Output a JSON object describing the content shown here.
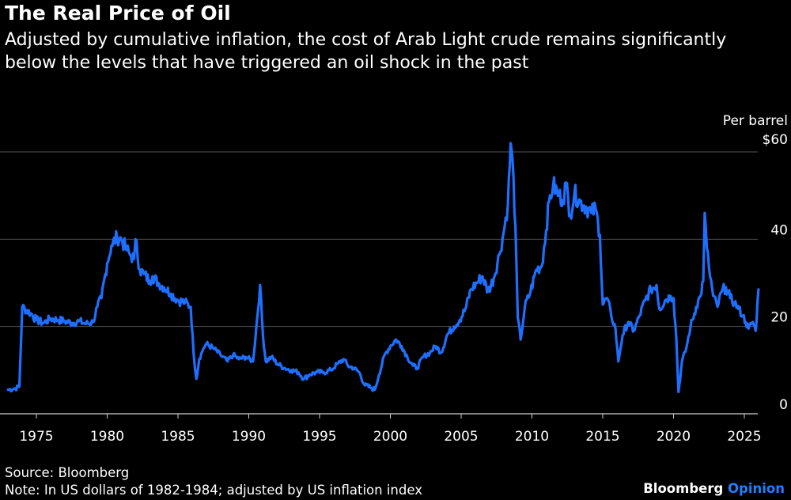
{
  "title": "The Real Price of Oil",
  "subtitle": "Adjusted by cumulative inflation, the cost of Arab Light crude remains significantly below the levels that have triggered an oil shock in the past",
  "source": "Source: Bloomberg",
  "note": "Note: In US dollars of 1982-1984; adjusted by US inflation index",
  "brand": {
    "name": "Bloomberg",
    "suffix": "Opinion"
  },
  "colors": {
    "line": "#1f6fff",
    "grid": "#555555",
    "text": "#ffffff",
    "background": "#000000",
    "brand_accent": "#1f7fff"
  },
  "chart_data": {
    "type": "line",
    "title": "The Real Price of Oil",
    "ylabel": "Per barrel",
    "y_unit_prefix": "$",
    "ylim": [
      0,
      65
    ],
    "xlim": [
      1972.6,
      2026.2
    ],
    "y_ticks": [
      0,
      20,
      40,
      60
    ],
    "y_tick_labels": [
      "0",
      "20",
      "40",
      "$60"
    ],
    "x_ticks": [
      1975,
      1980,
      1985,
      1990,
      1995,
      2000,
      2005,
      2010,
      2015,
      2020,
      2025
    ],
    "grid": "horizontal",
    "series": [
      {
        "x": [
          1973.0,
          1973.5,
          1973.8,
          1974.0,
          1974.6,
          1975.0,
          1975.5,
          1976.0,
          1976.5,
          1977.0,
          1977.5,
          1978.0,
          1978.5,
          1979.0,
          1979.3,
          1979.6,
          1980.0,
          1980.3,
          1980.7,
          1981.0,
          1981.3,
          1981.6,
          1981.9,
          1982.0,
          1982.3,
          1982.6,
          1983.0,
          1983.2,
          1983.6,
          1984.0,
          1984.5,
          1985.0,
          1985.5,
          1985.9,
          1986.1,
          1986.3,
          1986.5,
          1986.8,
          1987.0,
          1987.5,
          1988.0,
          1988.5,
          1988.9,
          1989.3,
          1989.8,
          1990.3,
          1990.6,
          1990.8,
          1991.0,
          1991.2,
          1991.6,
          1992.0,
          1992.5,
          1993.0,
          1993.5,
          1993.9,
          1994.3,
          1994.8,
          1995.3,
          1995.8,
          1996.3,
          1996.7,
          1997.0,
          1997.4,
          1997.8,
          1998.2,
          1998.6,
          1998.9,
          1999.2,
          1999.6,
          2000.0,
          2000.4,
          2000.8,
          2001.2,
          2001.6,
          2001.9,
          2002.3,
          2002.8,
          2003.2,
          2003.6,
          2004.0,
          2004.5,
          2004.9,
          2005.3,
          2005.7,
          2006.1,
          2006.5,
          2006.9,
          2007.3,
          2007.7,
          2008.0,
          2008.3,
          2008.5,
          2008.7,
          2008.9,
          2009.0,
          2009.2,
          2009.5,
          2009.9,
          2010.3,
          2010.7,
          2011.0,
          2011.2,
          2011.5,
          2011.9,
          2012.2,
          2012.4,
          2012.7,
          2013.0,
          2013.4,
          2013.8,
          2014.2,
          2014.5,
          2014.8,
          2015.0,
          2015.3,
          2015.6,
          2015.9,
          2016.1,
          2016.4,
          2016.8,
          2017.2,
          2017.6,
          2018.0,
          2018.4,
          2018.8,
          2019.0,
          2019.4,
          2019.8,
          2020.0,
          2020.2,
          2020.35,
          2020.6,
          2020.9,
          2021.2,
          2021.6,
          2021.9,
          2022.1,
          2022.2,
          2022.35,
          2022.5,
          2022.8,
          2023.1,
          2023.4,
          2023.7,
          2024.0,
          2024.3,
          2024.6,
          2024.9,
          2025.1,
          2025.3,
          2025.6,
          2025.8,
          2026.0
        ],
        "values": [
          5.5,
          5.8,
          6.2,
          24.5,
          23.0,
          21.5,
          20.8,
          21.8,
          21.5,
          21.2,
          20.8,
          21.2,
          20.6,
          21.0,
          24.5,
          26.5,
          34.5,
          38.5,
          40.5,
          40.0,
          38.0,
          36.5,
          35.5,
          40.0,
          33.0,
          32.0,
          30.5,
          31.5,
          30.0,
          29.0,
          27.5,
          26.0,
          25.5,
          24.5,
          14.0,
          8.0,
          12.5,
          15.0,
          16.0,
          15.0,
          13.5,
          12.0,
          13.5,
          12.5,
          13.0,
          12.0,
          22.0,
          29.5,
          18.0,
          12.0,
          13.0,
          11.5,
          10.5,
          10.0,
          9.5,
          8.0,
          9.0,
          9.5,
          9.5,
          10.0,
          11.5,
          12.5,
          11.0,
          10.5,
          9.5,
          6.5,
          6.0,
          5.5,
          9.0,
          13.5,
          15.5,
          17.0,
          15.5,
          13.0,
          11.0,
          10.5,
          13.0,
          14.0,
          15.5,
          14.0,
          18.0,
          20.0,
          21.5,
          24.0,
          28.5,
          30.0,
          31.5,
          28.0,
          31.0,
          36.5,
          41.5,
          48.0,
          62.0,
          54.0,
          35.0,
          22.0,
          17.0,
          24.5,
          28.0,
          33.0,
          34.0,
          42.0,
          48.5,
          52.5,
          50.0,
          49.0,
          53.0,
          45.5,
          50.5,
          48.5,
          47.5,
          46.0,
          47.0,
          41.0,
          25.0,
          26.5,
          22.5,
          19.5,
          12.0,
          18.0,
          21.0,
          19.0,
          22.5,
          26.0,
          28.5,
          29.5,
          24.0,
          26.0,
          27.0,
          26.5,
          17.0,
          5.0,
          12.0,
          15.0,
          20.0,
          24.5,
          27.0,
          30.5,
          46.0,
          38.0,
          33.5,
          27.0,
          24.5,
          28.0,
          29.0,
          26.5,
          25.5,
          24.0,
          22.5,
          21.0,
          19.5,
          21.0,
          19.0,
          28.5
        ]
      }
    ]
  }
}
